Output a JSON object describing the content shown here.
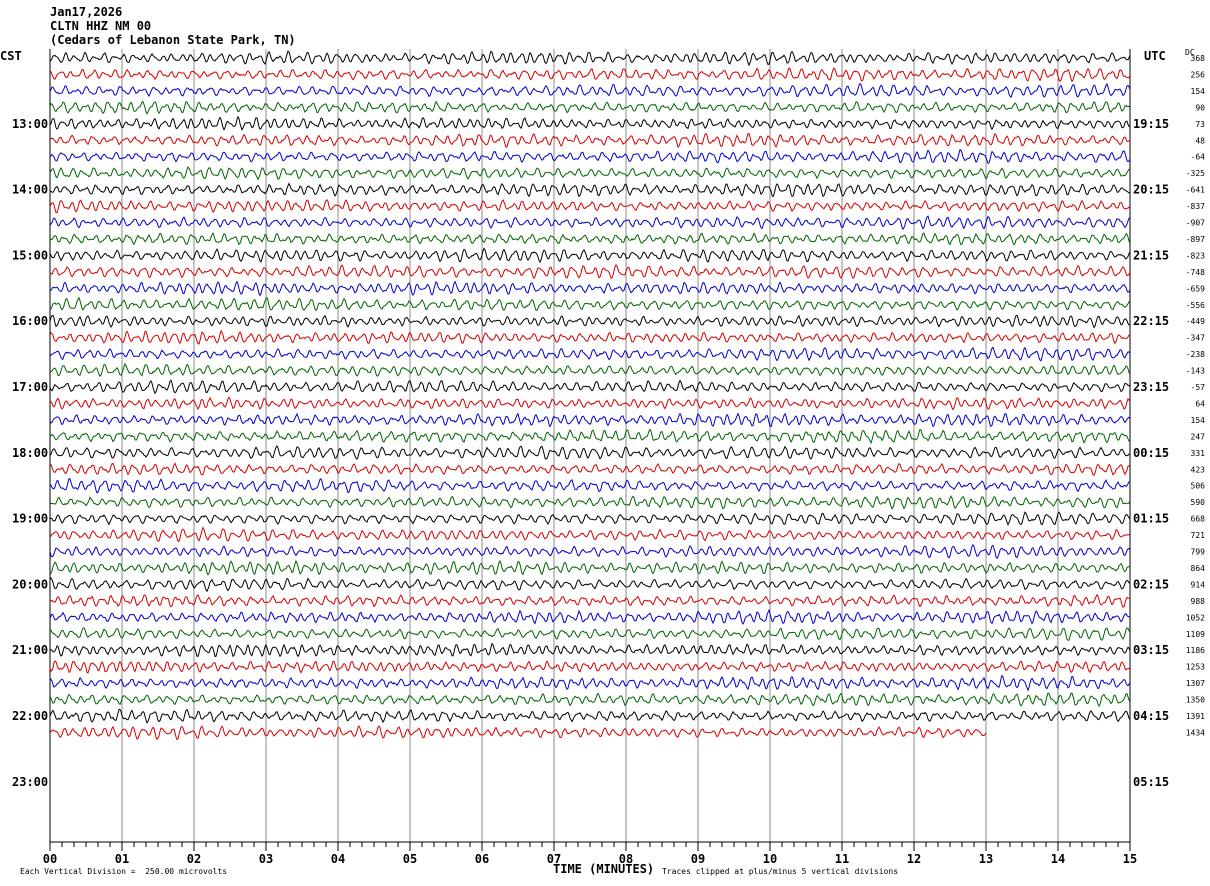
{
  "header": {
    "date": "Jan17,2026",
    "station": "CLTN HHZ NM 00",
    "location": "(Cedars of Lebanon State Park, TN)"
  },
  "left_axis_title": "CST",
  "right_axis_title": "UTC",
  "dc_title": "DC",
  "left_hours": [
    "13:00",
    "14:00",
    "15:00",
    "16:00",
    "17:00",
    "18:00",
    "19:00",
    "20:00",
    "21:00",
    "22:00",
    "23:00"
  ],
  "right_hours": [
    "19:15",
    "20:15",
    "21:15",
    "22:15",
    "23:15",
    "00:15",
    "01:15",
    "02:15",
    "03:15",
    "04:15",
    "05:15"
  ],
  "dc_offsets": [
    "368",
    "256",
    "154",
    "90",
    "73",
    "48",
    "-64",
    "-325",
    "-641",
    "-837",
    "-907",
    "-897",
    "-823",
    "-748",
    "-659",
    "-556",
    "-449",
    "-347",
    "-238",
    "-143",
    "-57",
    "64",
    "154",
    "247",
    "331",
    "423",
    "506",
    "590",
    "668",
    "721",
    "799",
    "864",
    "914",
    "988",
    "1052",
    "1109",
    "1186",
    "1253",
    "1307",
    "1350",
    "1391",
    "1434"
  ],
  "colors": {
    "trace_cycle": [
      "#000000",
      "#d40000",
      "#0000cc",
      "#006400"
    ],
    "grid": "#8c8c8c"
  },
  "footer": {
    "xlabel": "TIME (MINUTES)",
    "scale_note": "Each Vertical Division =  250.00 microvolts",
    "clip_note": "Traces clipped at plus/minus 5 vertical divisions"
  },
  "chart_data": {
    "type": "line",
    "title": "CLTN HHZ NM 00",
    "xlabel": "TIME (MINUTES)",
    "x_ticks": [
      "00",
      "01",
      "02",
      "03",
      "04",
      "05",
      "06",
      "07",
      "08",
      "09",
      "10",
      "11",
      "12",
      "13",
      "14",
      "15"
    ],
    "xlim": [
      0,
      15
    ],
    "traces_per_hour": 4,
    "trace_count": 42,
    "last_trace_end_minute": 13,
    "grid": true
  }
}
